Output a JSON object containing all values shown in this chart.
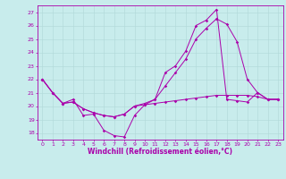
{
  "xlabel": "Windchill (Refroidissement éolien,°C)",
  "bg_color": "#c8ecec",
  "grid_color": "#b0d8d8",
  "line_color": "#aa00aa",
  "xlim": [
    -0.5,
    23.5
  ],
  "ylim": [
    17.5,
    27.5
  ],
  "xticks": [
    0,
    1,
    2,
    3,
    4,
    5,
    6,
    7,
    8,
    9,
    10,
    11,
    12,
    13,
    14,
    15,
    16,
    17,
    18,
    19,
    20,
    21,
    22,
    23
  ],
  "yticks": [
    18,
    19,
    20,
    21,
    22,
    23,
    24,
    25,
    26,
    27
  ],
  "line1_x": [
    0,
    1,
    2,
    3,
    4,
    5,
    6,
    7,
    8,
    9,
    10,
    11,
    12,
    13,
    14,
    15,
    16,
    17,
    18,
    19,
    20,
    21,
    22,
    23
  ],
  "line1_y": [
    22,
    21,
    20.2,
    20.5,
    19.3,
    19.4,
    18.2,
    17.8,
    17.7,
    19.3,
    20.1,
    20.5,
    22.5,
    23,
    24.1,
    26,
    26.4,
    27.2,
    20.5,
    20.4,
    20.3,
    21,
    20.5,
    20.5
  ],
  "line2_x": [
    0,
    1,
    2,
    3,
    4,
    5,
    6,
    7,
    8,
    9,
    10,
    11,
    12,
    13,
    14,
    15,
    16,
    17,
    18,
    19,
    20,
    21,
    22,
    23
  ],
  "line2_y": [
    22,
    21,
    20.2,
    20.3,
    19.8,
    19.5,
    19.3,
    19.2,
    19.4,
    20.0,
    20.1,
    20.2,
    20.3,
    20.4,
    20.5,
    20.6,
    20.7,
    20.8,
    20.8,
    20.8,
    20.8,
    20.7,
    20.5,
    20.5
  ],
  "line3_x": [
    0,
    1,
    2,
    3,
    4,
    5,
    6,
    7,
    8,
    9,
    10,
    11,
    12,
    13,
    14,
    15,
    16,
    17,
    18,
    19,
    20,
    21,
    22,
    23
  ],
  "line3_y": [
    22,
    21,
    20.2,
    20.3,
    19.8,
    19.5,
    19.3,
    19.2,
    19.4,
    20.0,
    20.2,
    20.5,
    21.5,
    22.5,
    23.5,
    25.0,
    25.8,
    26.5,
    26.1,
    24.8,
    22.0,
    21.0,
    20.5,
    20.5
  ],
  "tick_fontsize": 4.5,
  "xlabel_fontsize": 5.5,
  "lw": 0.7,
  "marker_size": 1.8
}
